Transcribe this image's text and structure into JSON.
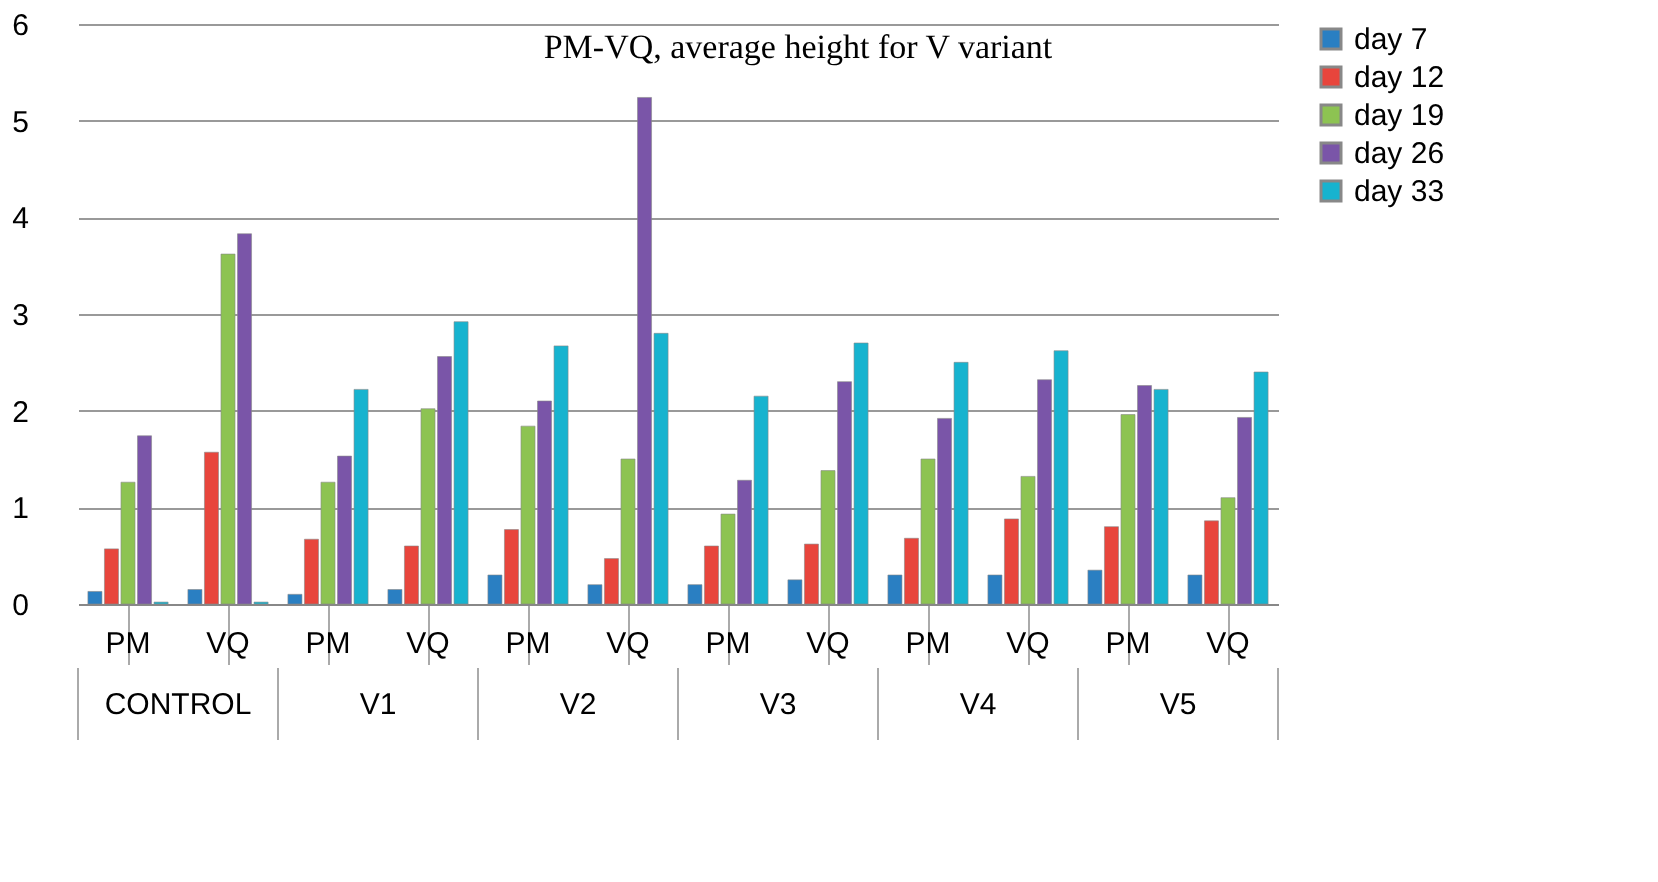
{
  "chart_data": {
    "type": "bar",
    "title": "PM-VQ,  average height for V variant",
    "categories": [
      "PM",
      "VQ",
      "PM",
      "VQ",
      "PM",
      "VQ",
      "PM",
      "VQ",
      "PM",
      "VQ",
      "PM",
      "VQ"
    ],
    "annotations": [
      "CONTROL",
      "V1",
      "V2",
      "V3",
      "V4",
      "V5"
    ],
    "series": [
      {
        "name": "day 7",
        "color": "#2a7fc2",
        "values": [
          0.13,
          0.15,
          0.1,
          0.15,
          0.3,
          0.2,
          0.2,
          0.25,
          0.3,
          0.3,
          0.35,
          0.3
        ]
      },
      {
        "name": "day 12",
        "color": "#e8453c",
        "values": [
          0.57,
          1.57,
          0.67,
          0.6,
          0.77,
          0.47,
          0.6,
          0.62,
          0.68,
          0.88,
          0.8,
          0.86
        ]
      },
      {
        "name": "day 19",
        "color": "#8dc352",
        "values": [
          1.26,
          3.62,
          1.26,
          2.02,
          1.84,
          1.5,
          0.93,
          1.38,
          1.5,
          1.32,
          1.96,
          1.1
        ]
      },
      {
        "name": "day 26",
        "color": "#7a55a8",
        "values": [
          1.74,
          3.83,
          1.53,
          2.56,
          2.1,
          5.24,
          1.28,
          2.3,
          1.92,
          2.32,
          2.26,
          1.93
        ]
      },
      {
        "name": "day 33",
        "color": "#17b3cf",
        "values": [
          0.02,
          0.02,
          2.22,
          2.92,
          2.67,
          2.8,
          2.15,
          2.7,
          2.5,
          2.62,
          2.22,
          2.4
        ]
      }
    ],
    "ylim": [
      0,
      6
    ],
    "yticks": [
      0,
      1,
      2,
      3,
      4,
      5,
      6
    ],
    "grid": "y",
    "legend": "right"
  }
}
